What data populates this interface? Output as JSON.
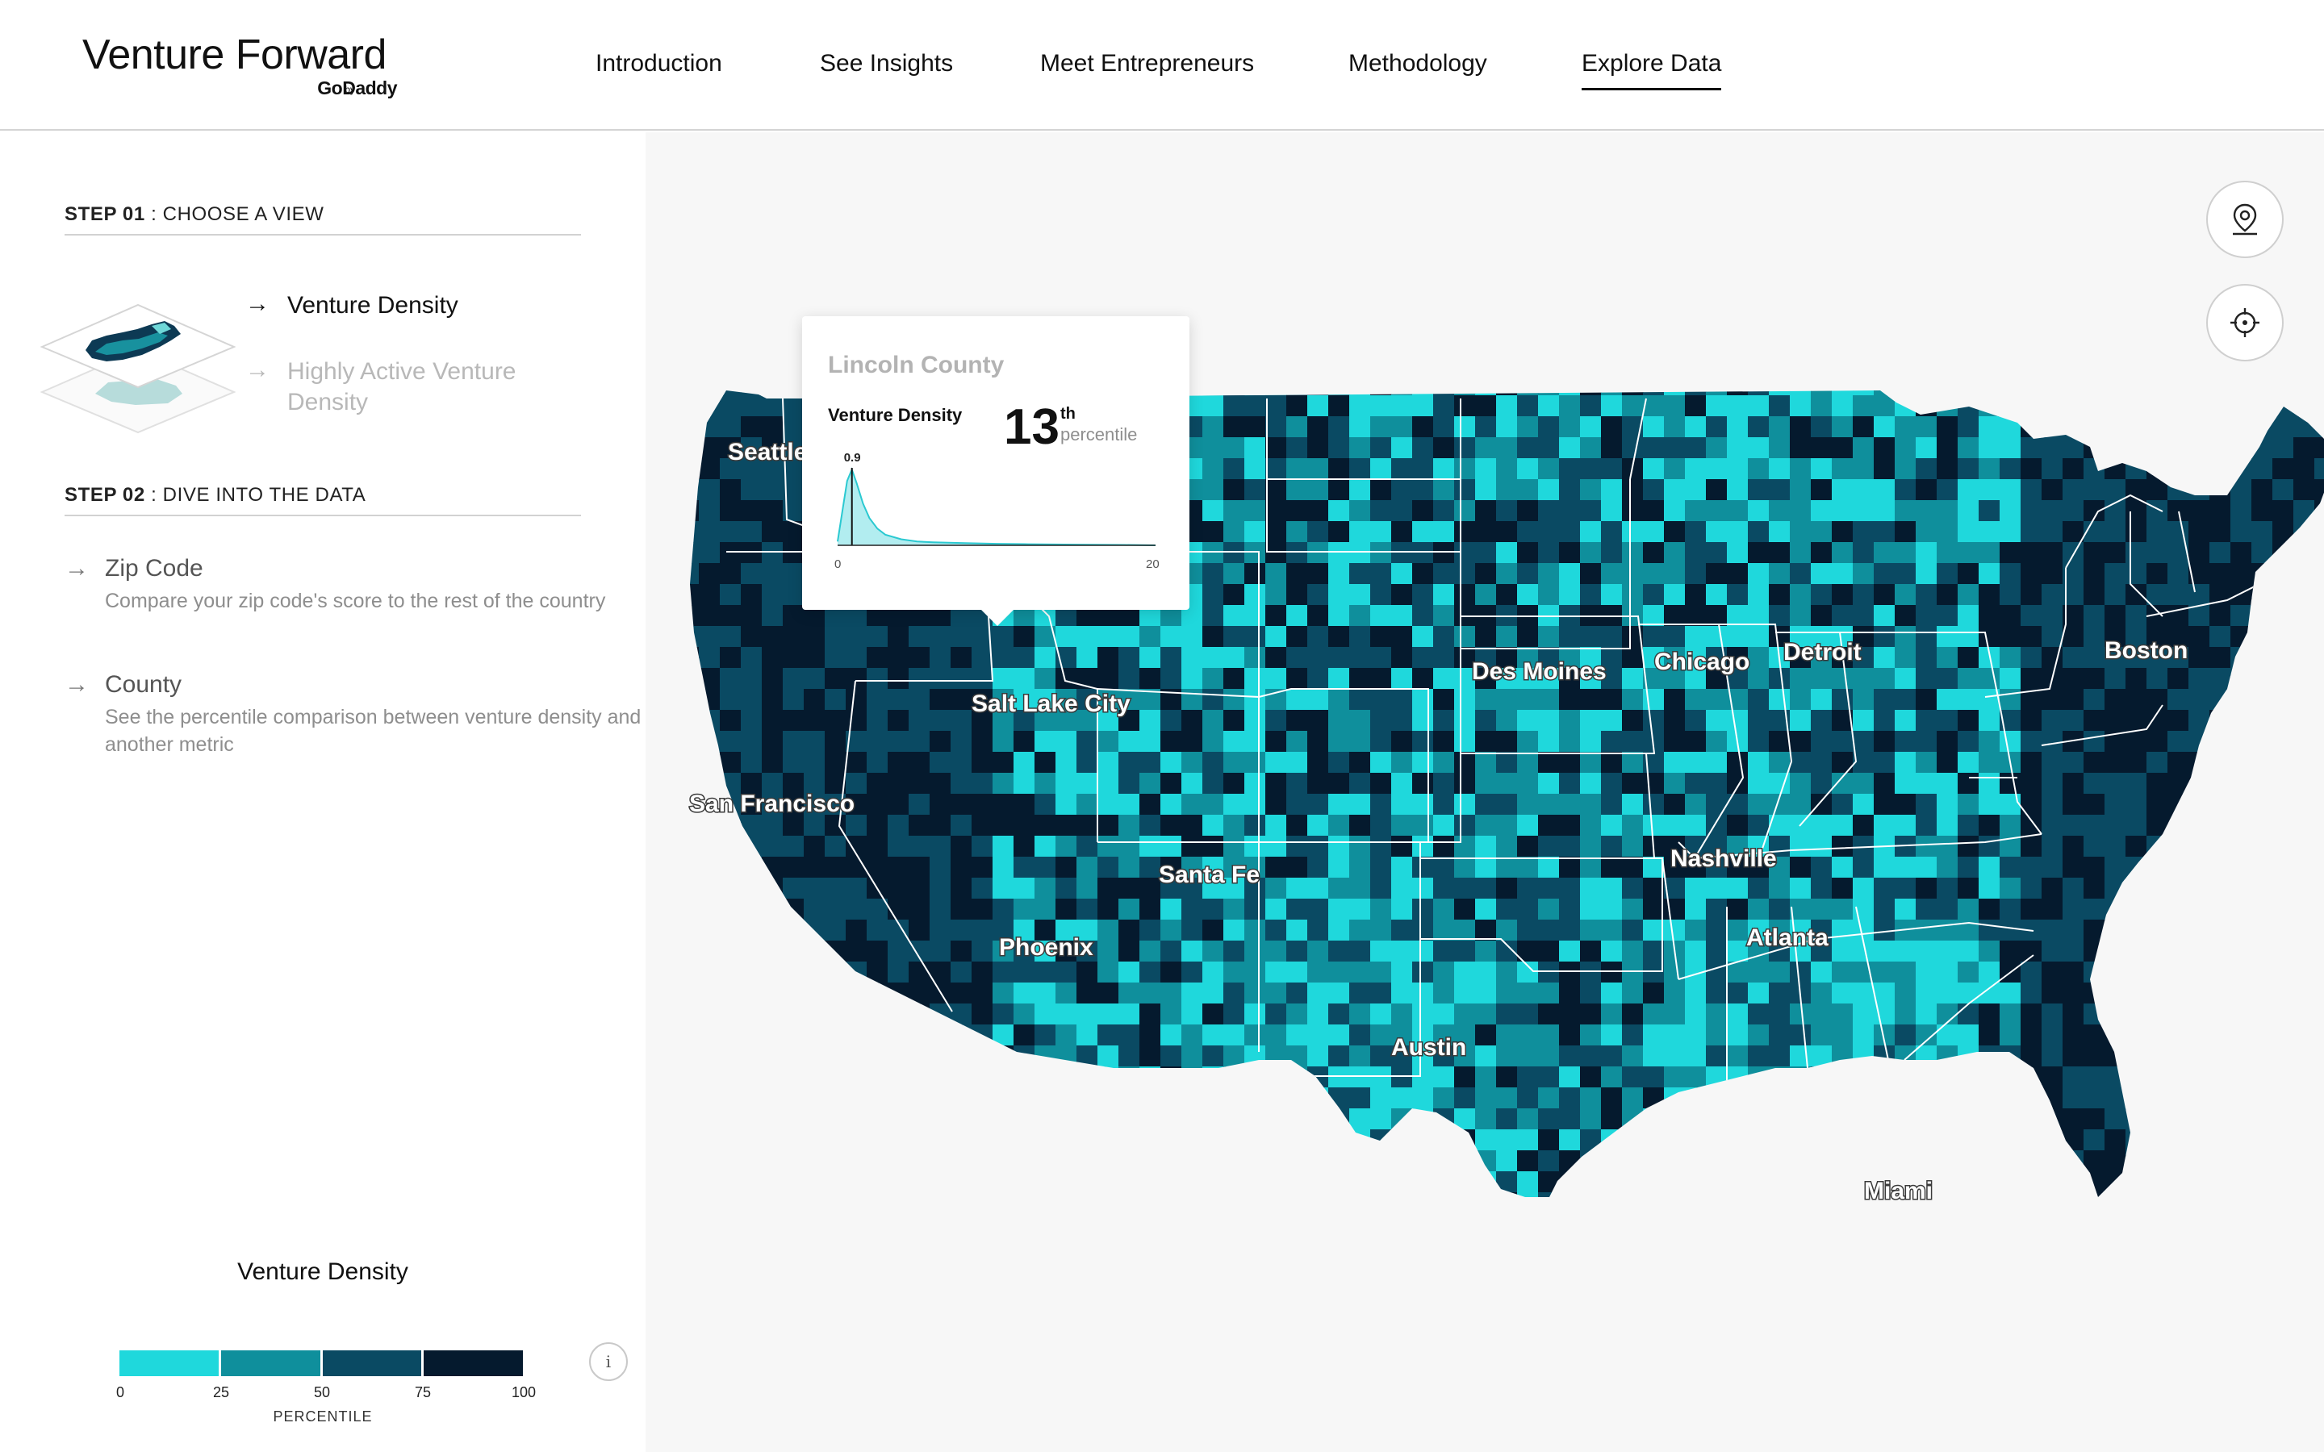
{
  "header": {
    "logo_title": "Venture Forward",
    "logo_by": "by",
    "logo_brand": "GoDaddy",
    "nav": [
      {
        "label": "Introduction"
      },
      {
        "label": "See Insights"
      },
      {
        "label": "Meet Entrepreneurs"
      },
      {
        "label": "Methodology"
      },
      {
        "label": "Explore Data",
        "active": true
      }
    ]
  },
  "sidebar": {
    "step1": {
      "num": "STEP 01",
      "label": " : CHOOSE A VIEW"
    },
    "views": [
      {
        "label": "Venture Density",
        "active": true,
        "arrow": "→"
      },
      {
        "label": "Highly Active Venture Density",
        "active": false,
        "arrow": "→"
      }
    ],
    "step2": {
      "num": "STEP 02",
      "label": " : DIVE INTO THE DATA"
    },
    "data_options": [
      {
        "title": "Zip Code",
        "desc": "Compare your zip code's score to the rest of the country",
        "arrow": "→"
      },
      {
        "title": "County",
        "desc": "See the percentile comparison between venture density and another metric",
        "arrow": "→"
      }
    ],
    "info_icon": "info-icon",
    "info_glyph": "i"
  },
  "legend": {
    "title": "Venture Density",
    "ticks": [
      "0",
      "25",
      "50",
      "75",
      "100"
    ],
    "caption": "PERCENTILE",
    "colors": [
      "#1fd8dc",
      "#0f8f9c",
      "#0a4a63",
      "#051a2e"
    ]
  },
  "map": {
    "background": "#f7f7f7",
    "border_color": "#ffffff",
    "cities": [
      {
        "name": "Seattle"
      },
      {
        "name": "Salt Lake City"
      },
      {
        "name": "San Francisco"
      },
      {
        "name": "Santa Fe"
      },
      {
        "name": "Phoenix"
      },
      {
        "name": "Austin"
      },
      {
        "name": "Des Moines"
      },
      {
        "name": "Chicago"
      },
      {
        "name": "Detroit"
      },
      {
        "name": "Boston"
      },
      {
        "name": "Nashville"
      },
      {
        "name": "Atlanta"
      },
      {
        "name": "Miami"
      }
    ],
    "controls": [
      {
        "icon": "location-pin-icon"
      },
      {
        "icon": "crosshair-icon"
      }
    ]
  },
  "tooltip": {
    "county": "Lincoln County",
    "metric": "Venture Density",
    "percentile": "13",
    "suffix": "th",
    "percentile_word": "percentile",
    "marker_value": "0.9",
    "x_min": "0",
    "x_max": "20",
    "chart_data": {
      "type": "area",
      "x": [
        0,
        0.3,
        0.6,
        0.9,
        1.2,
        1.6,
        2,
        2.5,
        3,
        4,
        5,
        6,
        8,
        10,
        12,
        15,
        18,
        20
      ],
      "values": [
        0.05,
        0.45,
        0.85,
        1.0,
        0.82,
        0.55,
        0.36,
        0.22,
        0.14,
        0.08,
        0.05,
        0.04,
        0.03,
        0.02,
        0.015,
        0.01,
        0.005,
        0.0
      ],
      "marker": 0.9,
      "xlim": [
        0,
        20
      ],
      "fill_color": "#9fe9ec",
      "line_color": "#2bc9d1"
    }
  }
}
